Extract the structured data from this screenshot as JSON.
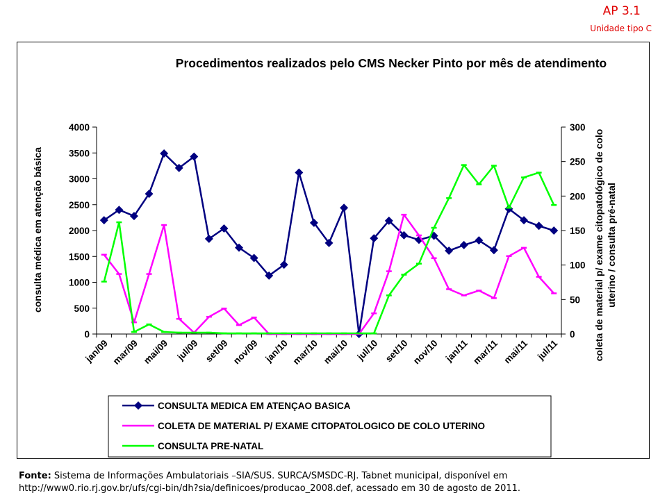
{
  "header": {
    "region": "AP 3.1",
    "unit_type": "Unidade tipo C"
  },
  "source": {
    "label": "Fonte:",
    "text_line1": "Sistema de Informações Ambulatoriais –SIA/SUS. SURCA/SMSDC-RJ. Tabnet municipal, disponível em",
    "text_line2": "http://www0.rio.rj.gov.br/ufs/cgi-bin/dh?sia/definicoes/producao_2008.def,  acessado em 30 de agosto de 2011."
  },
  "chart_data": {
    "type": "line",
    "title": "Procedimentos realizados pelo CMS Necker Pinto por mês de atendimento",
    "ylabel": "consulta  médica em atenção básica",
    "y2label_line1": "coleta de  material p/ exame citopatológico de colo",
    "y2label_line2": "uterino / consulta  pré-natal",
    "ylim": [
      0,
      4000
    ],
    "yticks": [
      0,
      500,
      1000,
      1500,
      2000,
      2500,
      3000,
      3500,
      4000
    ],
    "y2lim": [
      0,
      300
    ],
    "y2ticks": [
      0,
      50,
      100,
      150,
      200,
      250,
      300
    ],
    "x": [
      "jan/09",
      "fev/09",
      "mar/09",
      "abr/09",
      "mai/09",
      "jun/09",
      "jul/09",
      "ago/09",
      "set/09",
      "out/09",
      "nov/09",
      "dez/09",
      "jan/10",
      "fev/10",
      "mar/10",
      "abr/10",
      "mai/10",
      "jun/10",
      "jul/10",
      "ago/10",
      "set/10",
      "out/10",
      "nov/10",
      "dez/10",
      "jan/11",
      "fev/11",
      "mar/11",
      "abr/11",
      "mai/11",
      "jun/11",
      "jul/11"
    ],
    "tick_labels": [
      "jan/09",
      "mar/09",
      "mai/09",
      "jul/09",
      "set/09",
      "nov/09",
      "jan/10",
      "mar/10",
      "mai/10",
      "jul/10",
      "set/10",
      "nov/10",
      "jan/11",
      "mar/11",
      "mai/11",
      "jul/11"
    ],
    "tick_label_indices": [
      0,
      2,
      4,
      6,
      8,
      10,
      12,
      14,
      16,
      18,
      20,
      22,
      24,
      26,
      28,
      30
    ],
    "grid": false,
    "legend_position": "bottom",
    "series": [
      {
        "name": "CONSULTA MEDICA EM ATENÇAO BASICA",
        "axis": "left",
        "color": "#000080",
        "marker": "diamond",
        "values": [
          2200,
          2400,
          2280,
          2710,
          3490,
          3210,
          3430,
          1840,
          2040,
          1670,
          1470,
          1130,
          1340,
          3120,
          2150,
          1760,
          2440,
          0,
          1850,
          2190,
          1910,
          1820,
          1900,
          1610,
          1720,
          1810,
          1620,
          2420,
          2200,
          2090,
          2000
        ]
      },
      {
        "name": "COLETA DE MATERIAL P/ EXAME CITOPATOLOGICO DE COLO UTERINO",
        "axis": "right",
        "color": "#ff00ff",
        "marker": "dash",
        "values": [
          115,
          87,
          17,
          87,
          158,
          22,
          2,
          25,
          37,
          13,
          24,
          0,
          0,
          0,
          0,
          0,
          0,
          0,
          30,
          91,
          173,
          143,
          110,
          65,
          56,
          63,
          52,
          113,
          125,
          83,
          59
        ]
      },
      {
        "name": "CONSULTA PRE-NATAL",
        "axis": "right",
        "color": "#00ff00",
        "marker": "dash",
        "values": [
          76,
          162,
          3,
          14,
          3,
          2,
          2,
          2,
          1,
          1,
          1,
          1,
          1,
          1,
          1,
          1,
          1,
          1,
          1,
          56,
          86,
          102,
          154,
          197,
          245,
          217,
          244,
          183,
          227,
          234,
          187
        ]
      }
    ]
  }
}
